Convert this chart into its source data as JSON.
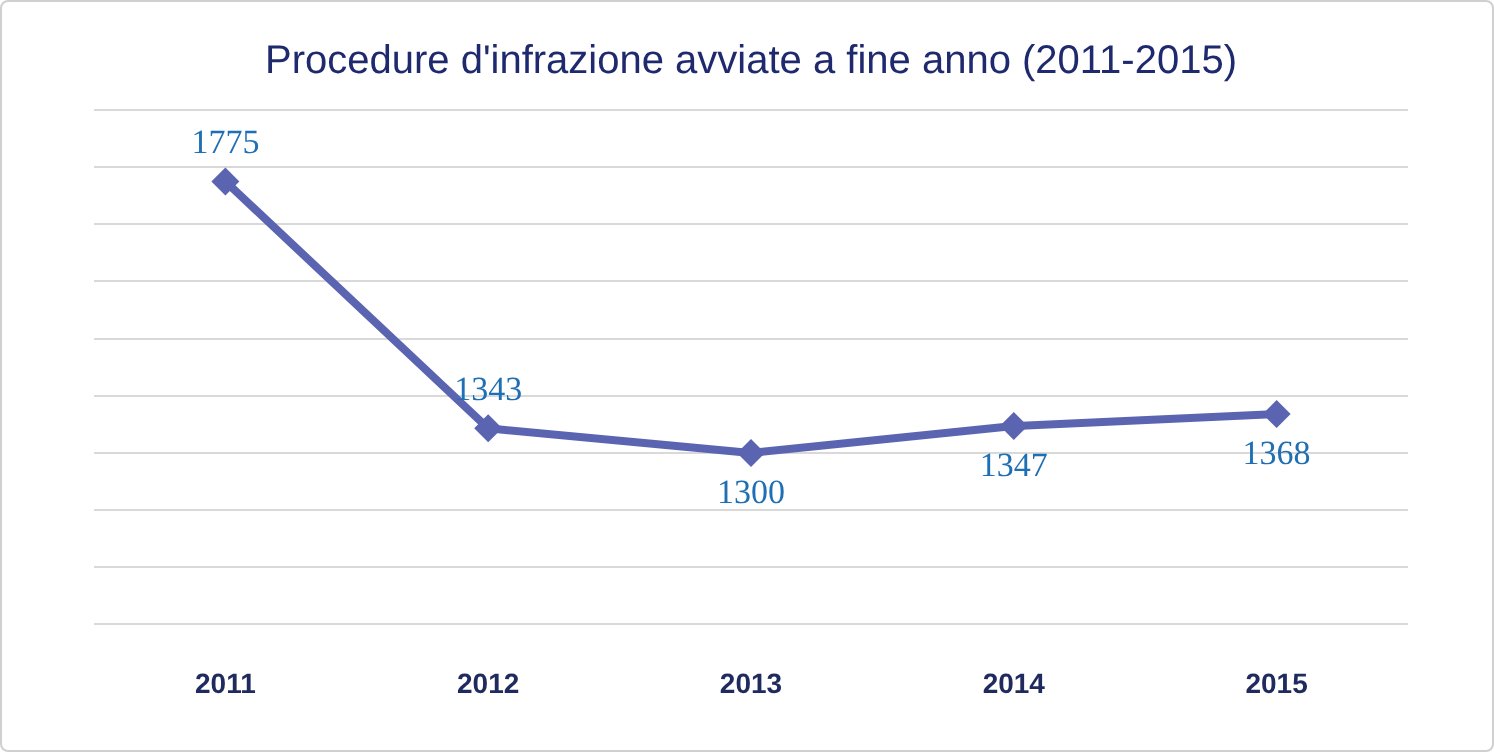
{
  "chart_data": {
    "type": "line",
    "title": "Procedure d'infrazione avviate a fine anno (2011-2015)",
    "categories": [
      "2011",
      "2012",
      "2013",
      "2014",
      "2015"
    ],
    "series": [
      {
        "color": "#5b64b1",
        "values": [
          1775,
          1343,
          1300,
          1347,
          1368
        ]
      }
    ],
    "ylim": [
      1000,
      1900
    ],
    "yticks": [
      {
        "value": 1000,
        "label": null
      },
      {
        "value": 1100,
        "label": null
      },
      {
        "value": 1200,
        "label": null
      },
      {
        "value": 1300,
        "label": null
      },
      {
        "value": 1400,
        "label": null
      },
      {
        "value": 1500,
        "label": null
      },
      {
        "value": 1600,
        "label": null
      },
      {
        "value": 1700,
        "label": null
      },
      {
        "value": 1800,
        "label": null
      },
      {
        "value": 1900,
        "label": null
      }
    ],
    "grid": "y",
    "tick_labels": "x",
    "marker": "diamond",
    "line_style": "solid",
    "data_labels": true,
    "legend": false
  }
}
